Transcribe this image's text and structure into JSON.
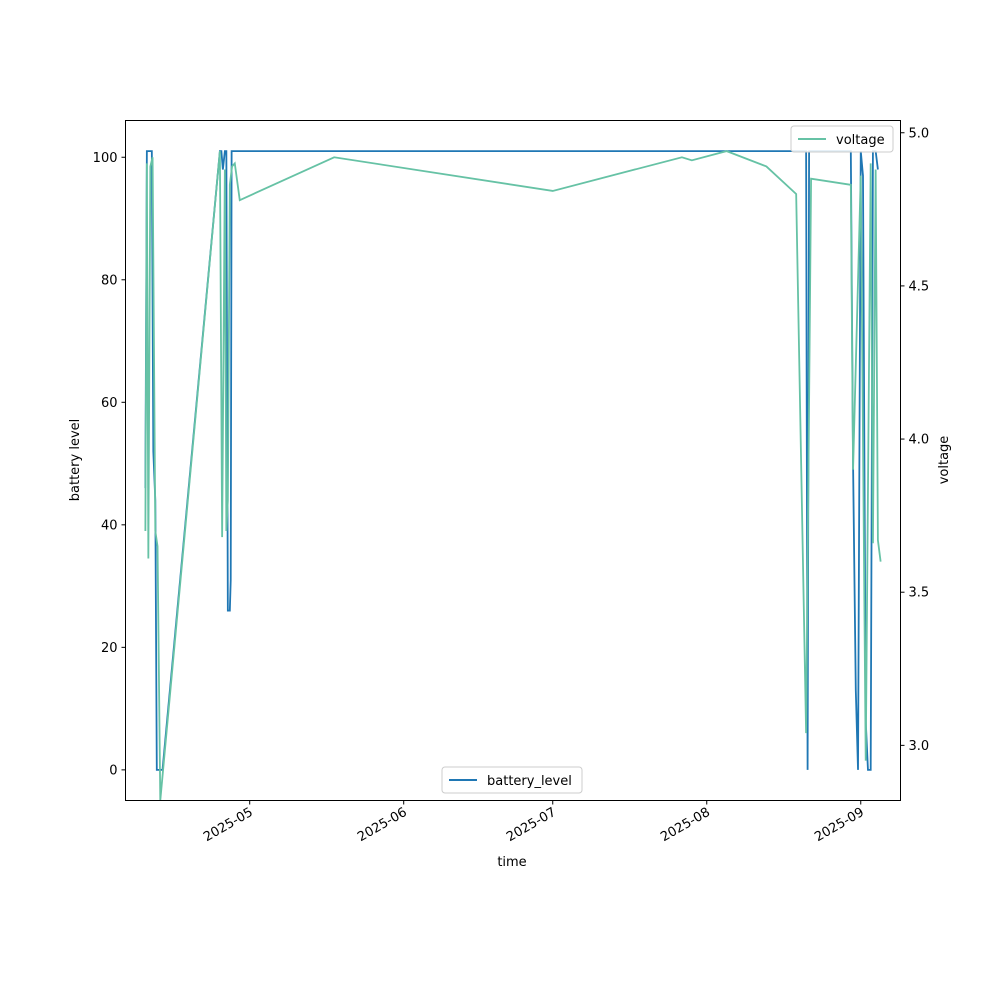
{
  "chart_data": {
    "type": "line",
    "title": "",
    "xlabel": "time",
    "ylabel": "battery level",
    "y2label": "voltage",
    "xlim": [
      "2025-04-06",
      "2025-09-09"
    ],
    "ylim": [
      -5,
      106
    ],
    "y2lim": [
      2.82,
      5.04
    ],
    "x_ticks": [
      "2025-05",
      "2025-06",
      "2025-07",
      "2025-08",
      "2025-09"
    ],
    "y_ticks": [
      0,
      20,
      40,
      60,
      80,
      100
    ],
    "y2_ticks": [
      3.0,
      3.5,
      4.0,
      4.5,
      5.0
    ],
    "y2_tick_labels": [
      "3.0",
      "3.5",
      "4.0",
      "4.5",
      "5.0"
    ],
    "grid": false,
    "colors": {
      "battery_level": "#1f77b4",
      "voltage": "#66c2a5"
    },
    "series": [
      {
        "name": "battery_level",
        "axis": "left",
        "legend": "bottom-center",
        "x": [
          "2025-04-10",
          "2025-04-10",
          "2025-04-10",
          "2025-04-11",
          "2025-04-11",
          "2025-04-11",
          "2025-04-12",
          "2025-04-12",
          "2025-04-12",
          "2025-04-13",
          "2025-04-13",
          "2025-04-25",
          "2025-04-25",
          "2025-04-25",
          "2025-04-26",
          "2025-04-26",
          "2025-04-26",
          "2025-04-27",
          "2025-04-27",
          "2025-04-27",
          "2025-04-27",
          "2025-04-27",
          "2025-04-28",
          "2025-08-19",
          "2025-08-21",
          "2025-08-21",
          "2025-08-21",
          "2025-08-30",
          "2025-08-30",
          "2025-08-31",
          "2025-08-31",
          "2025-09-01",
          "2025-09-01",
          "2025-09-02",
          "2025-09-02",
          "2025-09-03",
          "2025-09-03",
          "2025-09-04",
          "2025-09-04"
        ],
        "values": [
          46,
          101,
          101,
          101,
          101,
          52,
          44,
          0,
          0,
          0,
          0,
          101,
          101,
          98,
          101,
          101,
          26,
          26,
          31,
          101,
          101,
          101,
          101,
          101,
          101,
          0,
          101,
          101,
          50,
          13,
          0,
          101,
          97,
          8,
          0,
          0,
          101,
          101,
          98
        ]
      },
      {
        "name": "voltage",
        "axis": "right",
        "legend": "upper-right",
        "x": [
          "2025-04-10",
          "2025-04-10",
          "2025-04-10",
          "2025-04-11",
          "2025-04-11",
          "2025-04-12",
          "2025-04-12",
          "2025-04-13",
          "2025-04-25",
          "2025-04-25",
          "2025-04-26",
          "2025-04-26",
          "2025-04-26",
          "2025-04-27",
          "2025-04-27",
          "2025-04-28",
          "2025-04-29",
          "2025-05-18",
          "2025-07-01",
          "2025-07-27",
          "2025-07-29",
          "2025-08-05",
          "2025-08-13",
          "2025-08-19",
          "2025-08-21",
          "2025-08-22",
          "2025-08-30",
          "2025-08-30",
          "2025-09-01",
          "2025-09-02",
          "2025-09-03",
          "2025-09-03",
          "2025-09-04",
          "2025-09-04",
          "2025-09-05"
        ],
        "values": [
          3.7,
          4.9,
          3.61,
          4.89,
          4.92,
          3.7,
          3.65,
          2.82,
          4.94,
          3.68,
          4.88,
          3.7,
          3.8,
          4.83,
          4.89,
          4.9,
          4.78,
          4.92,
          4.81,
          4.92,
          4.91,
          4.94,
          4.89,
          4.8,
          3.04,
          4.85,
          4.83,
          3.9,
          4.86,
          2.95,
          4.9,
          3.66,
          4.88,
          3.67,
          3.6
        ]
      }
    ]
  }
}
